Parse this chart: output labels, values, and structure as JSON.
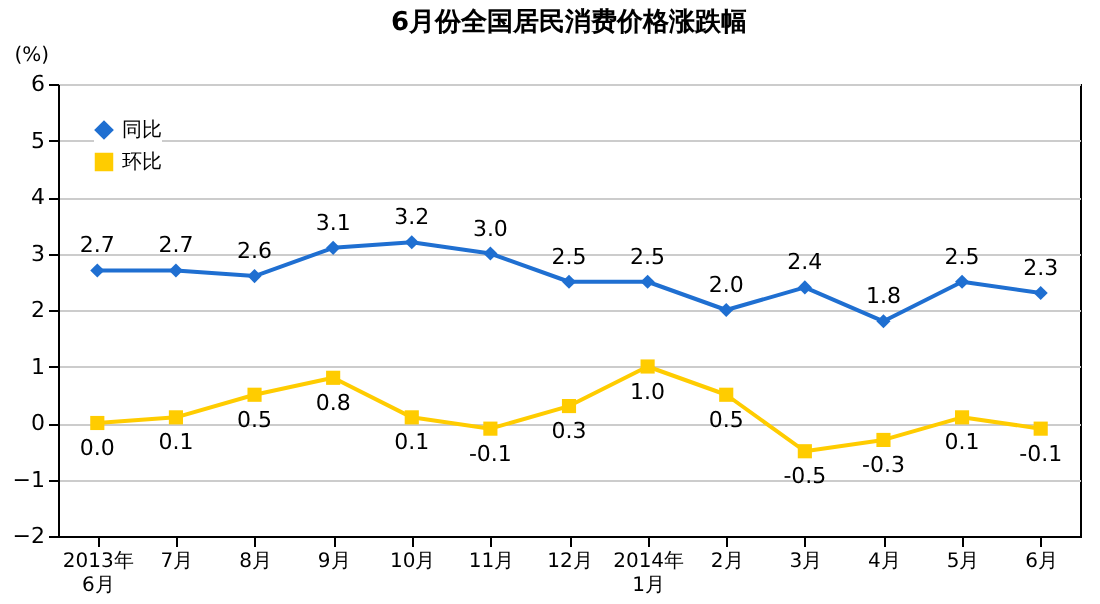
{
  "chart_data": {
    "type": "line",
    "title": "6月份全国居民消费价格涨跌幅",
    "ylabel": "(%)",
    "categories": [
      "2013年\n6月",
      "7月",
      "8月",
      "9月",
      "10月",
      "11月",
      "12月",
      "2014年\n1月",
      "2月",
      "3月",
      "4月",
      "5月",
      "6月"
    ],
    "series": [
      {
        "name": "同比",
        "color": "#1f6fd1",
        "marker": "diamond",
        "values": [
          2.7,
          2.7,
          2.6,
          3.1,
          3.2,
          3.0,
          2.5,
          2.5,
          2.0,
          2.4,
          1.8,
          2.5,
          2.3
        ],
        "value_labels": [
          "2.7",
          "2.7",
          "2.6",
          "3.1",
          "3.2",
          "3.0",
          "2.5",
          "2.5",
          "2.0",
          "2.4",
          "1.8",
          "2.5",
          "2.3"
        ]
      },
      {
        "name": "环比",
        "color": "#ffcc00",
        "marker": "square",
        "values": [
          0.0,
          0.1,
          0.5,
          0.8,
          0.1,
          -0.1,
          0.3,
          1.0,
          0.5,
          -0.5,
          -0.3,
          0.1,
          -0.1
        ],
        "value_labels": [
          "0.0",
          "0.1",
          "0.5",
          "0.8",
          "0.1",
          "-0.1",
          "0.3",
          "1.0",
          "0.5",
          "-0.5",
          "-0.3",
          "0.1",
          "-0.1"
        ]
      }
    ],
    "ylim": [
      -2,
      6
    ],
    "yticks": [
      -2,
      -1,
      0,
      1,
      2,
      3,
      4,
      5,
      6
    ],
    "grid": "y",
    "legend": "top left",
    "line_style": "solid"
  }
}
